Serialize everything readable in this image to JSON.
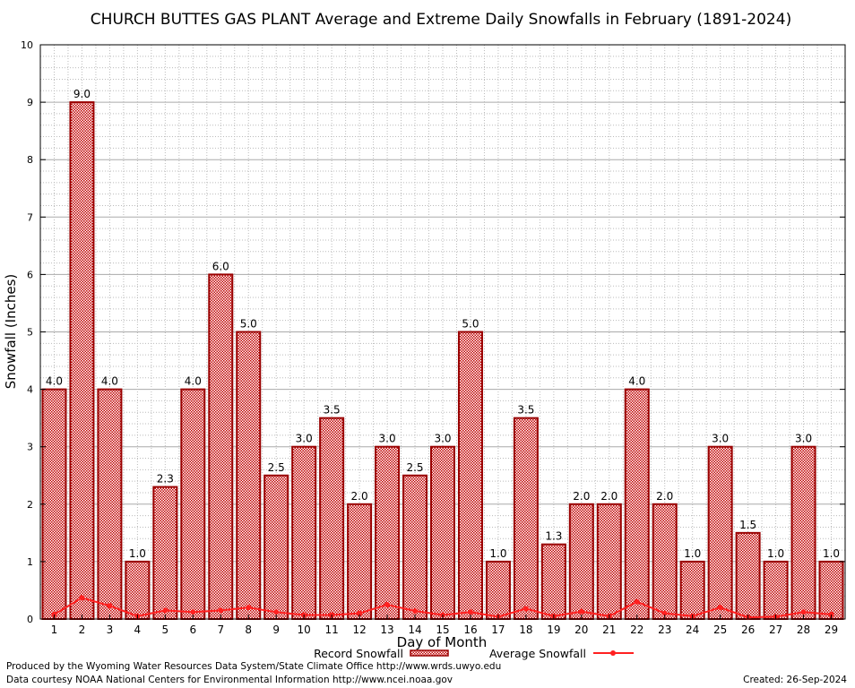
{
  "chart_data": {
    "type": "bar",
    "title": "CHURCH BUTTES GAS PLANT Average and Extreme Daily Snowfalls in February (1891-2024)",
    "xlabel": "Day of Month",
    "ylabel": "Snowfall (Inches)",
    "ylim": [
      0,
      10
    ],
    "yticks": [
      0,
      1,
      2,
      3,
      4,
      5,
      6,
      7,
      8,
      9,
      10
    ],
    "grid": true,
    "legend_placement": "bottom",
    "categories": [
      "1",
      "2",
      "3",
      "4",
      "5",
      "6",
      "7",
      "8",
      "9",
      "10",
      "11",
      "12",
      "13",
      "14",
      "15",
      "16",
      "17",
      "18",
      "19",
      "20",
      "21",
      "22",
      "23",
      "24",
      "25",
      "26",
      "27",
      "28",
      "29"
    ],
    "series": [
      {
        "name": "Record Snowfall",
        "kind": "bar",
        "color": "#cc0000",
        "values": [
          4.0,
          9.0,
          4.0,
          1.0,
          2.3,
          4.0,
          6.0,
          5.0,
          2.5,
          3.0,
          3.5,
          2.0,
          3.0,
          2.5,
          3.0,
          5.0,
          1.0,
          3.5,
          1.3,
          2.0,
          2.0,
          4.0,
          2.0,
          1.0,
          3.0,
          1.5,
          1.0,
          3.0,
          1.0
        ],
        "labels": [
          "4.0",
          "9.0",
          "4.0",
          "1.0",
          "2.3",
          "4.0",
          "6.0",
          "5.0",
          "2.5",
          "3.0",
          "3.5",
          "2.0",
          "3.0",
          "2.5",
          "3.0",
          "5.0",
          "1.0",
          "3.5",
          "1.3",
          "2.0",
          "2.0",
          "4.0",
          "2.0",
          "1.0",
          "3.0",
          "1.5",
          "1.0",
          "3.0",
          "1.0"
        ]
      },
      {
        "name": "Average Snowfall",
        "kind": "line",
        "color": "#ff2020",
        "values": [
          0.08,
          0.37,
          0.23,
          0.05,
          0.15,
          0.12,
          0.15,
          0.2,
          0.12,
          0.07,
          0.07,
          0.1,
          0.25,
          0.14,
          0.07,
          0.12,
          0.04,
          0.18,
          0.05,
          0.13,
          0.05,
          0.3,
          0.1,
          0.05,
          0.2,
          0.03,
          0.04,
          0.12,
          0.08
        ]
      }
    ]
  },
  "footer": {
    "produced_by": "Produced by the Wyoming Water Resources Data System/State Climate Office http://www.wrds.uwyo.edu",
    "courtesy": "Data courtesy NOAA National Centers for Environmental Information http://www.ncei.noaa.gov",
    "created": "Created: 26-Sep-2024"
  }
}
